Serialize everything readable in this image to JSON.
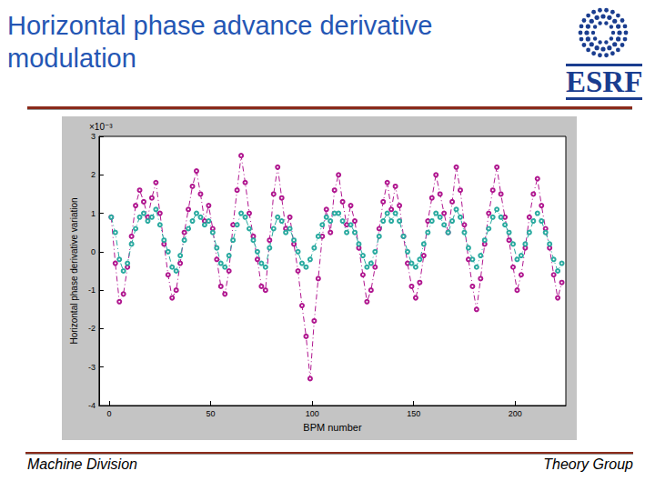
{
  "header": {
    "title": "Horizontal phase advance derivative modulation",
    "logo_text": "ESRF"
  },
  "footer": {
    "left": "Machine Division",
    "right": "Theory Group"
  },
  "chart_data": {
    "type": "line",
    "x_label": "BPM number",
    "y_label": "Horizontal phase derivative variation",
    "annotations": [
      "×10⁻³"
    ],
    "xlim": [
      -5,
      225
    ],
    "xticks": [
      0,
      50,
      100,
      150,
      200
    ],
    "ylim": [
      -4,
      3
    ],
    "yticks": [
      -4,
      -3,
      -2,
      -1,
      0,
      1,
      2,
      3
    ],
    "grid": false,
    "x": [
      1,
      3,
      5,
      7,
      9,
      11,
      13,
      15,
      17,
      19,
      21,
      23,
      25,
      27,
      29,
      31,
      33,
      35,
      37,
      39,
      41,
      43,
      45,
      47,
      49,
      51,
      53,
      55,
      57,
      59,
      61,
      63,
      65,
      67,
      69,
      71,
      73,
      75,
      77,
      79,
      81,
      83,
      85,
      87,
      89,
      91,
      93,
      95,
      97,
      99,
      101,
      103,
      105,
      107,
      109,
      111,
      113,
      115,
      117,
      119,
      121,
      123,
      125,
      127,
      129,
      131,
      133,
      135,
      137,
      139,
      141,
      143,
      145,
      147,
      149,
      151,
      153,
      155,
      157,
      159,
      161,
      163,
      165,
      167,
      169,
      171,
      173,
      175,
      177,
      179,
      181,
      183,
      185,
      187,
      189,
      191,
      193,
      195,
      197,
      199,
      201,
      203,
      205,
      207,
      209,
      211,
      213,
      215,
      217,
      219,
      221,
      223
    ],
    "series": [
      {
        "color": "#b0178f",
        "marker": "circle",
        "line_style": "dashdot",
        "values": [
          0.9,
          -0.3,
          -1.3,
          -1.1,
          -0.4,
          0.4,
          1.2,
          1.6,
          1.3,
          0.9,
          1.4,
          1.8,
          1.0,
          0.2,
          -0.6,
          -1.2,
          -1.0,
          -0.3,
          0.5,
          1.1,
          1.7,
          2.1,
          1.5,
          0.8,
          1.2,
          0.6,
          -0.2,
          -0.9,
          -1.1,
          -0.5,
          0.7,
          1.6,
          2.5,
          1.8,
          1.0,
          0.4,
          -0.2,
          -0.9,
          -1.0,
          0.3,
          1.5,
          2.2,
          1.4,
          0.6,
          0.9,
          0.2,
          -0.5,
          -1.4,
          -2.2,
          -3.3,
          -1.8,
          -0.7,
          0.4,
          1.1,
          0.5,
          1.6,
          2.0,
          1.3,
          0.7,
          1.2,
          0.8,
          0.1,
          -0.6,
          -1.3,
          -1.0,
          -0.4,
          0.6,
          1.3,
          1.8,
          1.1,
          1.7,
          1.2,
          0.4,
          -0.3,
          -0.9,
          -1.2,
          -0.8,
          -0.1,
          0.8,
          1.4,
          2.0,
          1.5,
          1.0,
          0.5,
          1.3,
          2.2,
          1.6,
          0.7,
          -0.2,
          -0.9,
          -1.5,
          -0.7,
          0.2,
          1.0,
          1.6,
          2.2,
          1.5,
          0.9,
          0.3,
          -0.4,
          -1.0,
          -0.6,
          0.1,
          0.9,
          1.5,
          1.9,
          1.2,
          0.6,
          0.1,
          -0.6,
          -1.2,
          -0.8
        ]
      },
      {
        "color": "#2aaaa0",
        "marker": "circle",
        "line_style": "dashdot",
        "values": [
          0.9,
          0.5,
          -0.2,
          -0.5,
          -0.3,
          0.2,
          0.6,
          0.9,
          1.0,
          0.8,
          0.9,
          1.1,
          0.7,
          0.3,
          0.0,
          -0.4,
          -0.5,
          -0.1,
          0.3,
          0.6,
          0.8,
          1.0,
          0.9,
          0.7,
          0.8,
          0.5,
          0.1,
          -0.3,
          -0.4,
          -0.1,
          0.3,
          0.7,
          1.0,
          0.9,
          0.6,
          0.3,
          0.0,
          -0.3,
          -0.4,
          0.1,
          0.6,
          0.9,
          0.8,
          0.5,
          0.6,
          0.3,
          0.0,
          -0.3,
          -0.4,
          -0.2,
          0.1,
          0.4,
          0.7,
          0.9,
          0.8,
          1.0,
          1.0,
          0.8,
          0.5,
          0.7,
          0.5,
          0.2,
          -0.1,
          -0.4,
          -0.3,
          0.0,
          0.4,
          0.8,
          1.0,
          0.8,
          1.0,
          0.8,
          0.4,
          0.0,
          -0.3,
          -0.4,
          -0.2,
          0.2,
          0.5,
          0.8,
          1.0,
          0.9,
          0.7,
          0.5,
          0.8,
          1.1,
          0.9,
          0.5,
          0.1,
          -0.2,
          -0.4,
          -0.1,
          0.3,
          0.6,
          0.9,
          1.1,
          0.9,
          0.7,
          0.5,
          0.2,
          -0.2,
          -0.1,
          0.2,
          0.5,
          0.8,
          1.0,
          0.8,
          0.5,
          0.2,
          -0.2,
          -0.5,
          -0.3
        ]
      }
    ]
  }
}
